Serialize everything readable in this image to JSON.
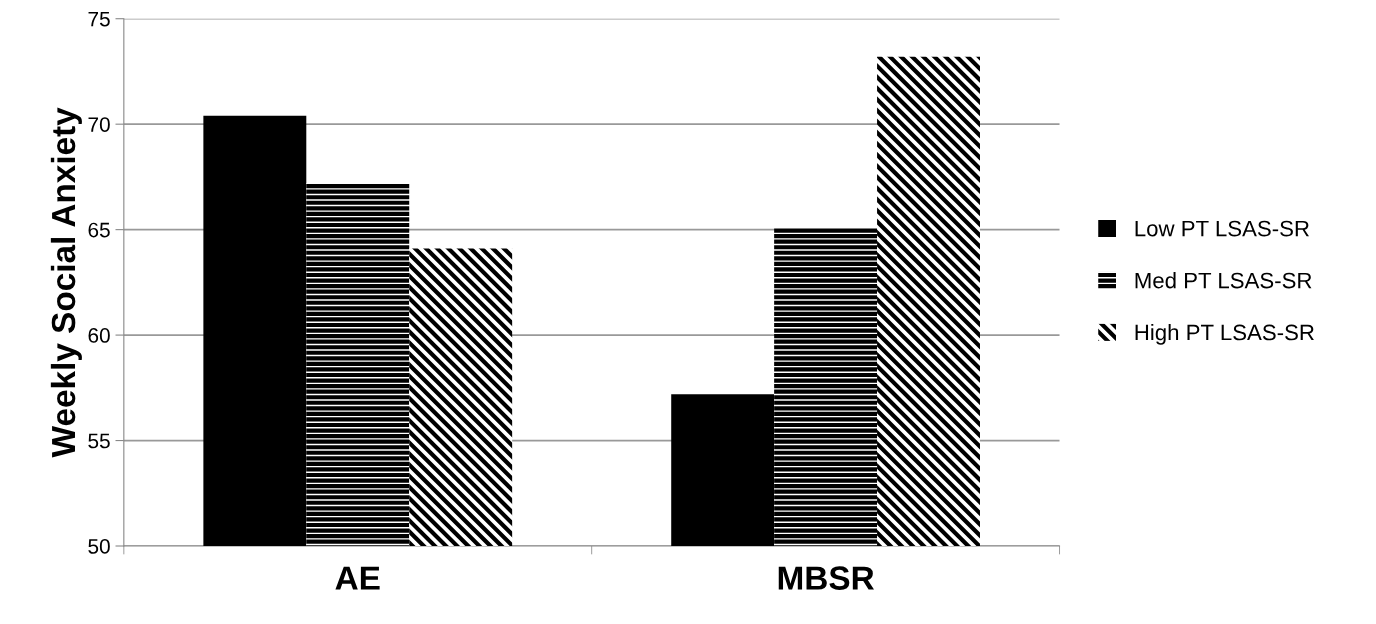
{
  "chart_data": {
    "type": "bar",
    "ylabel": "Weekly Social Anxiety",
    "categories": [
      "AE",
      "MBSR"
    ],
    "series": [
      {
        "name": "Low PT LSAS-SR",
        "color": "#000000",
        "values": [
          70.4,
          57.2
        ]
      },
      {
        "name": "Med PT LSAS-SR",
        "color": "#000000",
        "values": [
          67.2,
          65.1
        ]
      },
      {
        "name": "High PT LSAS-SR",
        "color": "#000000",
        "values": [
          64.1,
          73.2
        ]
      }
    ],
    "ylim": [
      50,
      75
    ],
    "yticks": [
      50,
      55,
      60,
      65,
      70,
      75
    ],
    "grid": "y",
    "legend": "right"
  }
}
